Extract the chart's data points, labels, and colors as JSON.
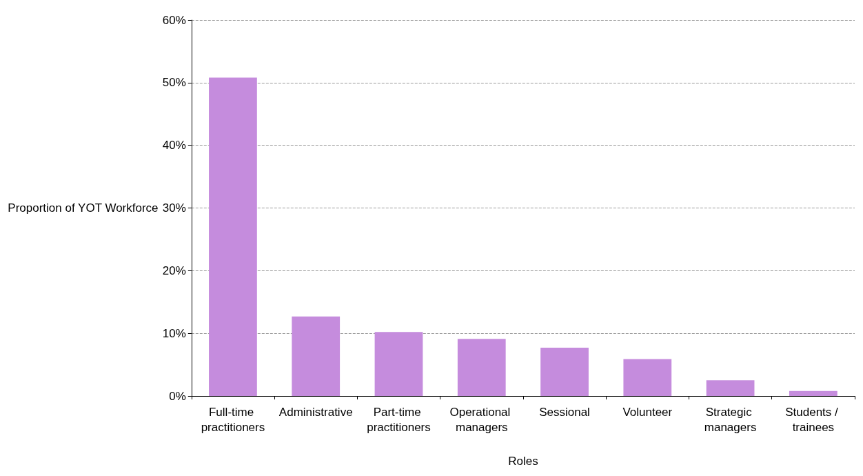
{
  "chart_data": {
    "type": "bar",
    "xlabel": "Roles",
    "ylabel": "Proportion of YOT Workforce",
    "categories": [
      "Full-time practitioners",
      "Administrative",
      "Part-time practitioners",
      "Operational managers",
      "Sessional",
      "Volunteer",
      "Strategic managers",
      "Students / trainees"
    ],
    "values": [
      50.8,
      12.7,
      10.2,
      9.1,
      7.7,
      5.9,
      2.5,
      0.8
    ],
    "color": "#c58cdd",
    "ylim": [
      0,
      60
    ],
    "yticks": [
      {
        "value": 0,
        "label": "0%"
      },
      {
        "value": 10,
        "label": "10%"
      },
      {
        "value": 20,
        "label": "20%"
      },
      {
        "value": 30,
        "label": "30%"
      },
      {
        "value": 40,
        "label": "40%"
      },
      {
        "value": 50,
        "label": "50%"
      },
      {
        "value": 60,
        "label": "60%"
      }
    ],
    "grid": "y"
  }
}
